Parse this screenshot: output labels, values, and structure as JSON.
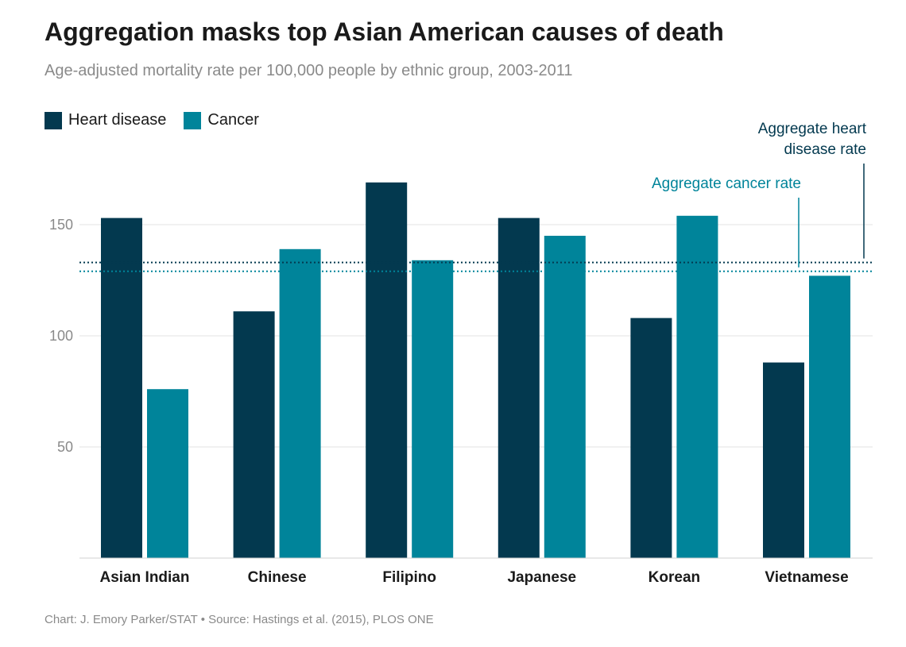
{
  "title": "Aggregation masks top Asian American causes of death",
  "subtitle": "Age-adjusted mortality rate per 100,000 people by ethnic group, 2003-2011",
  "footer": "Chart: J. Emory Parker/STAT • Source: Hastings et al. (2015), PLOS ONE",
  "colors": {
    "heart": "#03394f",
    "cancer": "#00849a",
    "grid": "#e3e3e3"
  },
  "chart_data": {
    "type": "bar",
    "categories": [
      "Asian Indian",
      "Chinese",
      "Filipino",
      "Japanese",
      "Korean",
      "Vietnamese"
    ],
    "series": [
      {
        "name": "Heart disease",
        "values": [
          153,
          111,
          169,
          153,
          108,
          88
        ]
      },
      {
        "name": "Cancer",
        "values": [
          76,
          139,
          134,
          145,
          154,
          127
        ]
      }
    ],
    "yticks": [
      50,
      100,
      150
    ],
    "ylim": [
      0,
      175
    ],
    "grid": true,
    "legend": "top-left",
    "reference_lines": [
      {
        "label": "Aggregate heart disease rate",
        "label_lines": [
          "Aggregate heart",
          "disease rate"
        ],
        "value": 133,
        "series": "Heart disease"
      },
      {
        "label": "Aggregate cancer rate",
        "label_lines": [
          "Aggregate cancer rate"
        ],
        "value": 129,
        "series": "Cancer"
      }
    ]
  }
}
